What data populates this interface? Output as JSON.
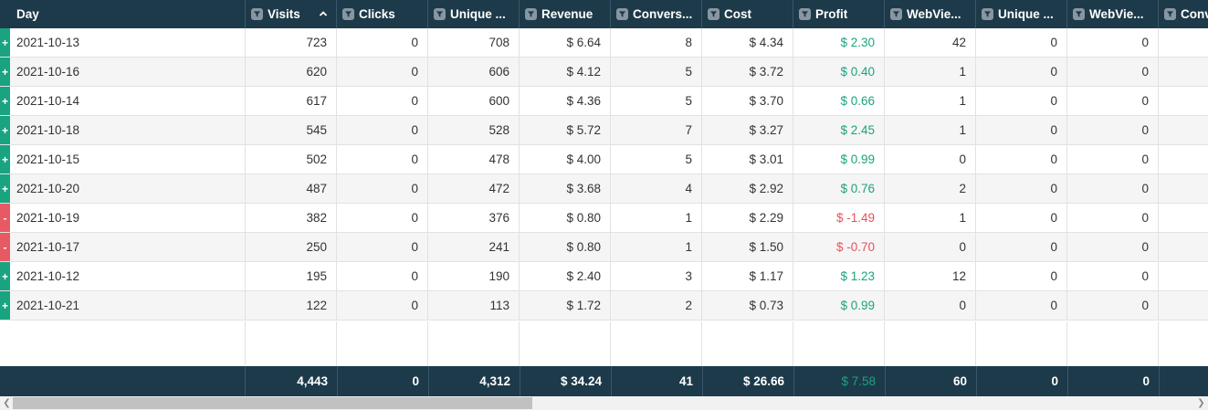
{
  "colors": {
    "header_bg": "#1d3a4a",
    "positive": "#1aa37f",
    "negative": "#e8505a",
    "row_alt": "#f5f5f5"
  },
  "columns": [
    {
      "label": "Day",
      "filter": false,
      "sorted": false
    },
    {
      "label": "Visits",
      "filter": true,
      "sorted": "asc"
    },
    {
      "label": "Clicks",
      "filter": true,
      "sorted": false
    },
    {
      "label": "Unique ...",
      "filter": true,
      "sorted": false
    },
    {
      "label": "Revenue",
      "filter": true,
      "sorted": false
    },
    {
      "label": "Convers...",
      "filter": true,
      "sorted": false
    },
    {
      "label": "Cost",
      "filter": true,
      "sorted": false
    },
    {
      "label": "Profit",
      "filter": true,
      "sorted": false
    },
    {
      "label": "WebVie...",
      "filter": true,
      "sorted": false
    },
    {
      "label": "Unique ...",
      "filter": true,
      "sorted": false
    },
    {
      "label": "WebVie...",
      "filter": true,
      "sorted": false
    },
    {
      "label": "Conv",
      "filter": true,
      "sorted": false
    }
  ],
  "rows": [
    {
      "toggle": "+",
      "day": "2021-10-13",
      "visits": "723",
      "clicks": "0",
      "unique": "708",
      "revenue": "$ 6.64",
      "conversions": "8",
      "cost": "$ 4.34",
      "profit": "$ 2.30",
      "profit_sign": "pos",
      "webviews": "42",
      "unique2": "0",
      "webviews2": "0"
    },
    {
      "toggle": "+",
      "day": "2021-10-16",
      "visits": "620",
      "clicks": "0",
      "unique": "606",
      "revenue": "$ 4.12",
      "conversions": "5",
      "cost": "$ 3.72",
      "profit": "$ 0.40",
      "profit_sign": "pos",
      "webviews": "1",
      "unique2": "0",
      "webviews2": "0"
    },
    {
      "toggle": "+",
      "day": "2021-10-14",
      "visits": "617",
      "clicks": "0",
      "unique": "600",
      "revenue": "$ 4.36",
      "conversions": "5",
      "cost": "$ 3.70",
      "profit": "$ 0.66",
      "profit_sign": "pos",
      "webviews": "1",
      "unique2": "0",
      "webviews2": "0"
    },
    {
      "toggle": "+",
      "day": "2021-10-18",
      "visits": "545",
      "clicks": "0",
      "unique": "528",
      "revenue": "$ 5.72",
      "conversions": "7",
      "cost": "$ 3.27",
      "profit": "$ 2.45",
      "profit_sign": "pos",
      "webviews": "1",
      "unique2": "0",
      "webviews2": "0"
    },
    {
      "toggle": "+",
      "day": "2021-10-15",
      "visits": "502",
      "clicks": "0",
      "unique": "478",
      "revenue": "$ 4.00",
      "conversions": "5",
      "cost": "$ 3.01",
      "profit": "$ 0.99",
      "profit_sign": "pos",
      "webviews": "0",
      "unique2": "0",
      "webviews2": "0"
    },
    {
      "toggle": "+",
      "day": "2021-10-20",
      "visits": "487",
      "clicks": "0",
      "unique": "472",
      "revenue": "$ 3.68",
      "conversions": "4",
      "cost": "$ 2.92",
      "profit": "$ 0.76",
      "profit_sign": "pos",
      "webviews": "2",
      "unique2": "0",
      "webviews2": "0"
    },
    {
      "toggle": "-",
      "day": "2021-10-19",
      "visits": "382",
      "clicks": "0",
      "unique": "376",
      "revenue": "$ 0.80",
      "conversions": "1",
      "cost": "$ 2.29",
      "profit": "$ -1.49",
      "profit_sign": "neg",
      "webviews": "1",
      "unique2": "0",
      "webviews2": "0"
    },
    {
      "toggle": "-",
      "day": "2021-10-17",
      "visits": "250",
      "clicks": "0",
      "unique": "241",
      "revenue": "$ 0.80",
      "conversions": "1",
      "cost": "$ 1.50",
      "profit": "$ -0.70",
      "profit_sign": "neg",
      "webviews": "0",
      "unique2": "0",
      "webviews2": "0"
    },
    {
      "toggle": "+",
      "day": "2021-10-12",
      "visits": "195",
      "clicks": "0",
      "unique": "190",
      "revenue": "$ 2.40",
      "conversions": "3",
      "cost": "$ 1.17",
      "profit": "$ 1.23",
      "profit_sign": "pos",
      "webviews": "12",
      "unique2": "0",
      "webviews2": "0"
    },
    {
      "toggle": "+",
      "day": "2021-10-21",
      "visits": "122",
      "clicks": "0",
      "unique": "113",
      "revenue": "$ 1.72",
      "conversions": "2",
      "cost": "$ 0.73",
      "profit": "$ 0.99",
      "profit_sign": "pos",
      "webviews": "0",
      "unique2": "0",
      "webviews2": "0"
    }
  ],
  "totals": {
    "visits": "4,443",
    "clicks": "0",
    "unique": "4,312",
    "revenue": "$ 34.24",
    "conversions": "41",
    "cost": "$ 26.66",
    "profit": "$ 7.58",
    "webviews": "60",
    "unique2": "0",
    "webviews2": "0"
  }
}
